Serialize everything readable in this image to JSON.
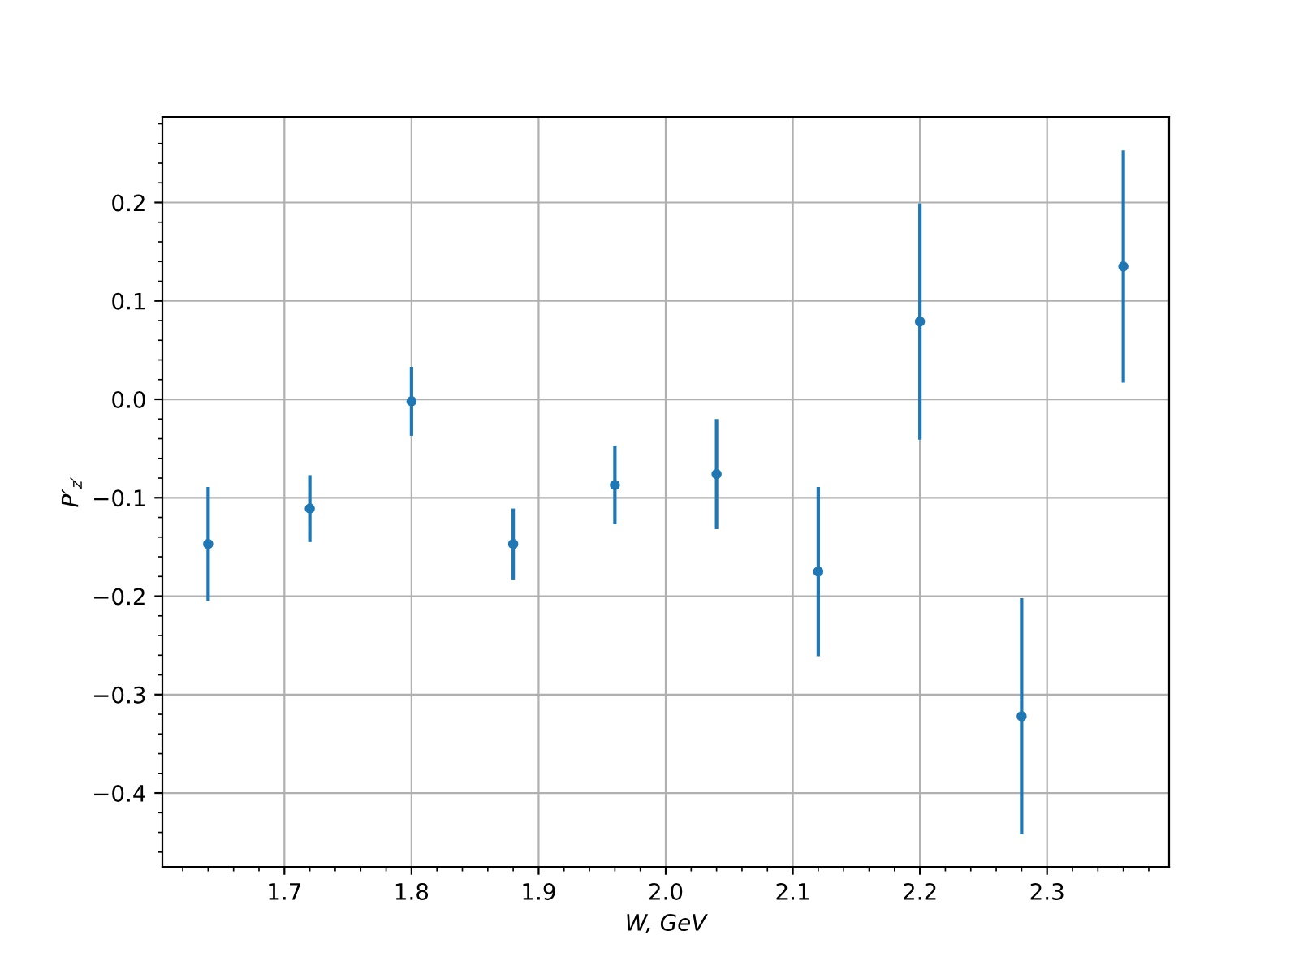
{
  "chart_data": {
    "type": "scatter",
    "xlabel": "W, GeV",
    "ylabel": "P′$_{z′}$",
    "x": [
      1.64,
      1.72,
      1.8,
      1.88,
      1.96,
      2.04,
      2.12,
      2.2,
      2.28,
      2.36
    ],
    "values": [
      -0.147,
      -0.111,
      -0.002,
      -0.147,
      -0.087,
      -0.076,
      -0.175,
      0.079,
      -0.322,
      0.135
    ],
    "errors": [
      0.058,
      0.034,
      0.035,
      0.036,
      0.04,
      0.056,
      0.086,
      0.12,
      0.12,
      0.118
    ],
    "color": "#1f77b4",
    "marker": "circle",
    "xlim": [
      1.604,
      2.396
    ],
    "xticks": [
      1.7,
      1.8,
      1.9,
      {
        "value": 2,
        "label": "2.0"
      },
      2.1,
      2.2,
      2.3
    ],
    "ylim": [
      -0.475,
      0.287
    ],
    "yticks": [
      {
        "value": -0.4,
        "label": "−0.4"
      },
      {
        "value": -0.3,
        "label": "−0.3"
      },
      {
        "value": -0.2,
        "label": "−0.2"
      },
      {
        "value": -0.1,
        "label": "−0.1"
      },
      {
        "value": 0,
        "label": "0.0"
      },
      0.1,
      0.2
    ],
    "grid": true
  }
}
